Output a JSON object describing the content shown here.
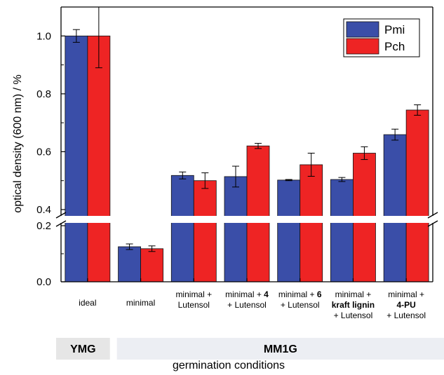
{
  "chart_data": {
    "type": "bar",
    "xlabel": "germination conditions",
    "ylabel": "optical density (600 nm) / %",
    "axis_break": {
      "lower_range": [
        0,
        0.2
      ],
      "upper_range": [
        0.4,
        1.0
      ]
    },
    "ylim": [
      0,
      1.1
    ],
    "yticks": [
      {
        "value": 0.0,
        "label": "0.0"
      },
      {
        "value": 0.2,
        "label": "0.2"
      },
      {
        "value": 0.4,
        "label": "0.4"
      },
      {
        "value": 0.6,
        "label": "0.6"
      },
      {
        "value": 0.8,
        "label": "0.8"
      },
      {
        "value": 1.0,
        "label": "1.0"
      }
    ],
    "categories": [
      {
        "lines": [
          [
            {
              "t": "ideal",
              "b": false
            }
          ]
        ]
      },
      {
        "lines": [
          [
            {
              "t": "minimal",
              "b": false
            }
          ]
        ]
      },
      {
        "lines": [
          [
            {
              "t": "minimal +",
              "b": false
            }
          ],
          [
            {
              "t": "Lutensol",
              "b": false
            }
          ]
        ]
      },
      {
        "lines": [
          [
            {
              "t": "minimal + ",
              "b": false
            },
            {
              "t": "4",
              "b": true
            }
          ],
          [
            {
              "t": "+ Lutensol",
              "b": false
            }
          ]
        ]
      },
      {
        "lines": [
          [
            {
              "t": "minimal + ",
              "b": false
            },
            {
              "t": "6",
              "b": true
            }
          ],
          [
            {
              "t": "+ Lutensol",
              "b": false
            }
          ]
        ]
      },
      {
        "lines": [
          [
            {
              "t": "minimal +",
              "b": false
            }
          ],
          [
            {
              "t": "kraft lignin",
              "b": true
            }
          ],
          [
            {
              "t": "+ Lutensol",
              "b": false
            }
          ]
        ]
      },
      {
        "lines": [
          [
            {
              "t": "minimal +",
              "b": false
            }
          ],
          [
            {
              "t": "4-PU",
              "b": true
            }
          ],
          [
            {
              "t": "+ Lutensol",
              "b": false
            }
          ]
        ]
      }
    ],
    "series": [
      {
        "name": "Pmi",
        "color": "#3a4ea8",
        "values": [
          1.0,
          0.125,
          0.518,
          0.514,
          0.502,
          0.504,
          0.659
        ],
        "errors": [
          0.022,
          0.01,
          0.012,
          0.036,
          0.002,
          0.007,
          0.019
        ]
      },
      {
        "name": "Pch",
        "color": "#ee2424",
        "values": [
          1.0,
          0.118,
          0.5,
          0.62,
          0.555,
          0.595,
          0.744
        ],
        "errors": [
          0.11,
          0.01,
          0.027,
          0.009,
          0.04,
          0.022,
          0.018
        ]
      }
    ],
    "legend": {
      "position": "top-right"
    },
    "groups": [
      {
        "label": "YMG",
        "span": [
          0,
          0
        ]
      },
      {
        "label": "MM1G",
        "span": [
          1,
          6
        ]
      }
    ]
  }
}
